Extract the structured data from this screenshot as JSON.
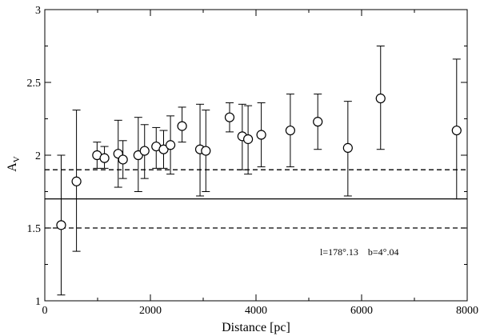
{
  "chart_data": {
    "type": "scatter",
    "title": "",
    "xlabel": "Distance [pc]",
    "ylabel_main": "A",
    "ylabel_sub": "V",
    "xlim": [
      0,
      8000
    ],
    "ylim": [
      1,
      3
    ],
    "x_ticks": [
      0,
      2000,
      4000,
      6000,
      8000
    ],
    "x_tick_labels": [
      "0",
      "2000",
      "4000",
      "6000",
      "8000"
    ],
    "y_ticks": [
      1,
      1.5,
      2,
      2.5,
      3
    ],
    "y_tick_labels": [
      "1",
      "1.5",
      "2",
      "2.5",
      "3"
    ],
    "grid": false,
    "annotation": "l=178°.13    b=4°.04",
    "reference_lines": [
      {
        "y": 1.7,
        "style": "solid"
      },
      {
        "y": 1.9,
        "style": "dashed"
      },
      {
        "y": 1.5,
        "style": "dashed"
      }
    ],
    "series": [
      {
        "points": [
          {
            "x": 310,
            "y": 1.52,
            "ylow": 1.04,
            "yhigh": 2.0
          },
          {
            "x": 600,
            "y": 1.82,
            "ylow": 1.34,
            "yhigh": 2.31
          },
          {
            "x": 990,
            "y": 2.0,
            "ylow": 1.91,
            "yhigh": 2.09
          },
          {
            "x": 1130,
            "y": 1.98,
            "ylow": 1.91,
            "yhigh": 2.06
          },
          {
            "x": 1390,
            "y": 2.01,
            "ylow": 1.78,
            "yhigh": 2.24
          },
          {
            "x": 1480,
            "y": 1.97,
            "ylow": 1.84,
            "yhigh": 2.1
          },
          {
            "x": 1770,
            "y": 2.0,
            "ylow": 1.75,
            "yhigh": 2.26
          },
          {
            "x": 1890,
            "y": 2.03,
            "ylow": 1.84,
            "yhigh": 2.21
          },
          {
            "x": 2110,
            "y": 2.06,
            "ylow": 1.91,
            "yhigh": 2.19
          },
          {
            "x": 2250,
            "y": 2.04,
            "ylow": 1.91,
            "yhigh": 2.17
          },
          {
            "x": 2380,
            "y": 2.07,
            "ylow": 1.87,
            "yhigh": 2.27
          },
          {
            "x": 2600,
            "y": 2.2,
            "ylow": 2.09,
            "yhigh": 2.33
          },
          {
            "x": 2940,
            "y": 2.04,
            "ylow": 1.72,
            "yhigh": 2.35
          },
          {
            "x": 3050,
            "y": 2.03,
            "ylow": 1.75,
            "yhigh": 2.31
          },
          {
            "x": 3500,
            "y": 2.26,
            "ylow": 2.16,
            "yhigh": 2.36
          },
          {
            "x": 3740,
            "y": 2.13,
            "ylow": 1.9,
            "yhigh": 2.35
          },
          {
            "x": 3850,
            "y": 2.11,
            "ylow": 1.87,
            "yhigh": 2.34
          },
          {
            "x": 4100,
            "y": 2.14,
            "ylow": 1.92,
            "yhigh": 2.36
          },
          {
            "x": 4650,
            "y": 2.17,
            "ylow": 1.92,
            "yhigh": 2.42
          },
          {
            "x": 5170,
            "y": 2.23,
            "ylow": 2.04,
            "yhigh": 2.42
          },
          {
            "x": 5740,
            "y": 2.05,
            "ylow": 1.72,
            "yhigh": 2.37
          },
          {
            "x": 6360,
            "y": 2.39,
            "ylow": 2.04,
            "yhigh": 2.75
          },
          {
            "x": 7800,
            "y": 2.17,
            "ylow": 1.7,
            "yhigh": 2.66
          }
        ]
      }
    ]
  }
}
